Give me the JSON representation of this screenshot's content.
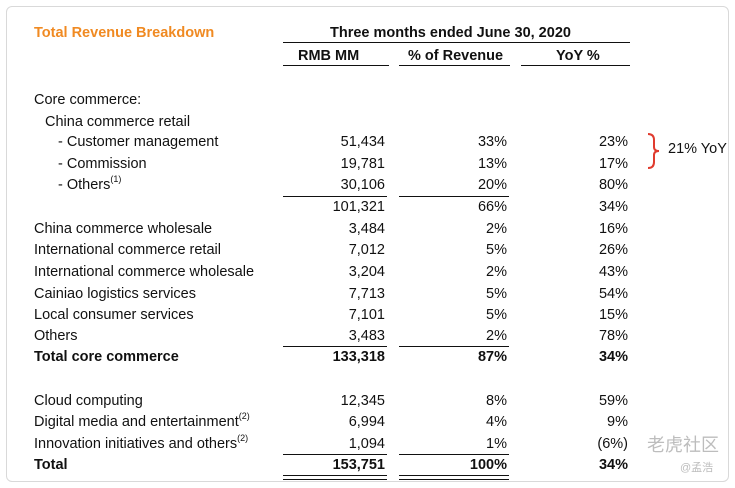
{
  "title": "Total Revenue Breakdown",
  "period_header": "Three months ended June 30, 2020",
  "columns": [
    "RMB MM",
    "% of Revenue",
    "YoY %"
  ],
  "rows": [
    {
      "label": "Core commerce:",
      "bold": false,
      "sup": "",
      "rmb": "",
      "pct": "",
      "yoy": ""
    },
    {
      "label": "China commerce retail",
      "bold": false,
      "sup": "",
      "rmb": "",
      "pct": "",
      "yoy": ""
    },
    {
      "label": "- Customer management",
      "bold": false,
      "sup": "",
      "rmb": "51,434",
      "pct": "33%",
      "yoy": "23%"
    },
    {
      "label": "- Commission",
      "bold": false,
      "sup": "",
      "rmb": "19,781",
      "pct": "13%",
      "yoy": "17%"
    },
    {
      "label": "- Others",
      "bold": false,
      "sup": "(1)",
      "rmb": "30,106",
      "pct": "20%",
      "yoy": "80%"
    },
    {
      "label": "",
      "bold": false,
      "sup": "",
      "rmb": "101,321",
      "pct": "66%",
      "yoy": "34%"
    },
    {
      "label": "China commerce wholesale",
      "bold": false,
      "sup": "",
      "rmb": "3,484",
      "pct": "2%",
      "yoy": "16%"
    },
    {
      "label": "International commerce retail",
      "bold": false,
      "sup": "",
      "rmb": "7,012",
      "pct": "5%",
      "yoy": "26%"
    },
    {
      "label": "International commerce wholesale",
      "bold": false,
      "sup": "",
      "rmb": "3,204",
      "pct": "2%",
      "yoy": "43%"
    },
    {
      "label": "Cainiao logistics services",
      "bold": false,
      "sup": "",
      "rmb": "7,713",
      "pct": "5%",
      "yoy": "54%"
    },
    {
      "label": "Local consumer services",
      "bold": false,
      "sup": "",
      "rmb": "7,101",
      "pct": "5%",
      "yoy": "15%"
    },
    {
      "label": "Others",
      "bold": false,
      "sup": "",
      "rmb": "3,483",
      "pct": "2%",
      "yoy": "78%"
    },
    {
      "label": "Total core commerce",
      "bold": true,
      "sup": "",
      "rmb": "133,318",
      "pct": "87%",
      "yoy": "34%"
    },
    {
      "label": "Cloud computing",
      "bold": false,
      "sup": "",
      "rmb": "12,345",
      "pct": "8%",
      "yoy": "59%"
    },
    {
      "label": "Digital media and entertainment",
      "bold": false,
      "sup": "(2)",
      "rmb": "6,994",
      "pct": "4%",
      "yoy": "9%"
    },
    {
      "label": "Innovation initiatives and others",
      "bold": false,
      "sup": "(2)",
      "rmb": "1,094",
      "pct": "1%",
      "yoy": "(6%)"
    },
    {
      "label": "Total",
      "bold": true,
      "sup": "",
      "rmb": "153,751",
      "pct": "100%",
      "yoy": "34%"
    }
  ],
  "annotation": "21% YoY",
  "colors": {
    "title": "#f08a22",
    "brace": "#e03b2e",
    "text": "#111111"
  },
  "watermark": {
    "main": "老虎社区",
    "sub": "@孟浩"
  }
}
